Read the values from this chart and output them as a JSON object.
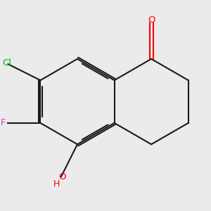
{
  "background_color": "#ebebeb",
  "bond_color": "#1a1a1a",
  "atom_colors": {
    "O": "#ff0000",
    "Cl": "#00bb00",
    "F": "#cc44cc",
    "H": "#ff0000"
  },
  "figsize": [
    3.0,
    3.0
  ],
  "dpi": 100
}
